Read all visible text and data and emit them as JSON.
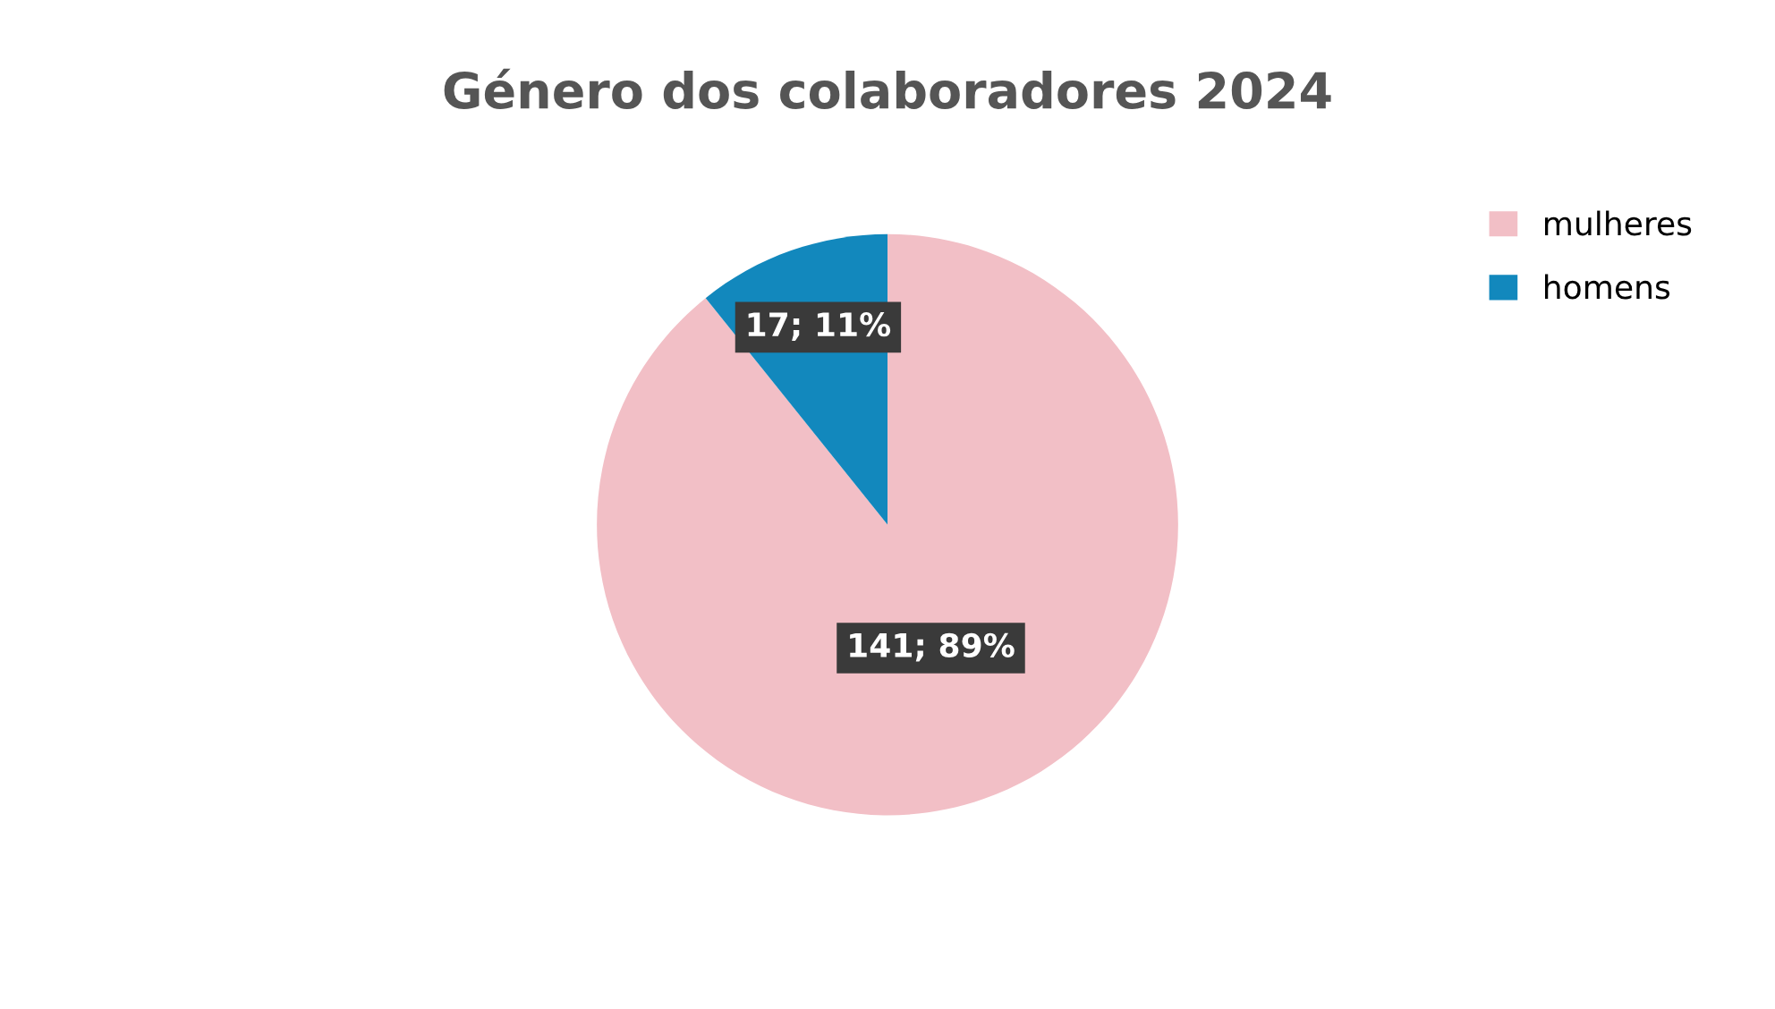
{
  "chart_data": {
    "type": "pie",
    "title": "Género dos colaboradores 2024",
    "categories": [
      "mulheres",
      "homens"
    ],
    "values": [
      141,
      17
    ],
    "colors": [
      "#f2bfc6",
      "#1288bd"
    ],
    "value_labels": [
      "141; 89%",
      "17; 11%"
    ],
    "legend": "top right"
  }
}
